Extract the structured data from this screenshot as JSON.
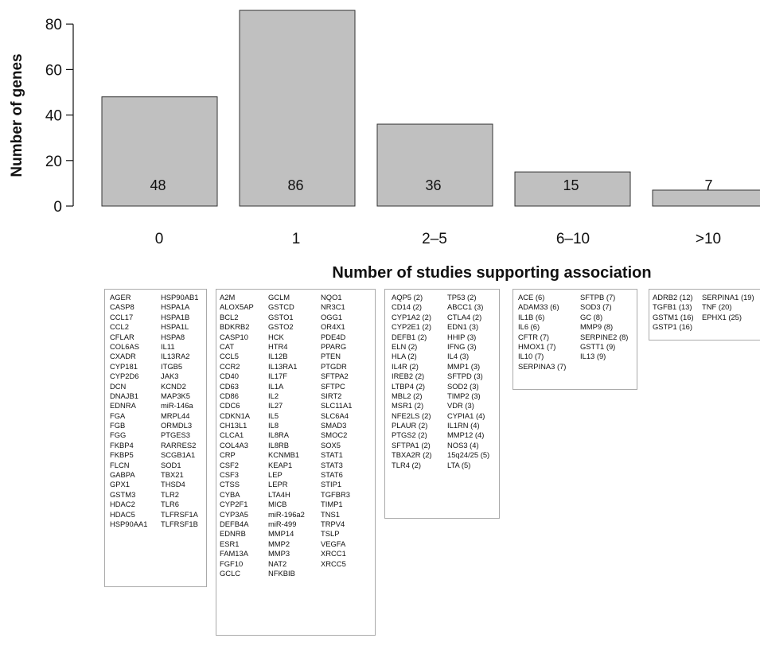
{
  "chart_data": {
    "type": "bar",
    "categories": [
      "0",
      "1",
      "2–5",
      "6–10",
      ">10"
    ],
    "values": [
      48,
      86,
      36,
      15,
      7
    ],
    "data_labels": [
      "48",
      "86",
      "36",
      "15",
      "7"
    ],
    "xlabel": "Number of studies supporting association",
    "ylabel": "Number of genes",
    "ylim": [
      0,
      86
    ],
    "yticks": [
      0,
      20,
      40,
      60,
      80
    ],
    "grid": false,
    "bar_color": "#c0c0c0",
    "bar_edge_color": "#333333"
  },
  "gene_lists": [
    {
      "category": "0",
      "columns": [
        [
          "AGER",
          "CASP8",
          "CCL17",
          "CCL2",
          "CFLAR",
          "COL6AS",
          "CXADR",
          "CYP181",
          "CYP2D6",
          "DCN",
          "DNAJB1",
          "EDNRA",
          "FGA",
          "FGB",
          "FGG",
          "FKBP4",
          "FKBP5",
          "FLCN",
          "GABPA",
          "GPX1",
          "GSTM3",
          "HDAC2",
          "HDAC5",
          "HSP90AA1"
        ],
        [
          "HSP90AB1",
          "HSPA1A",
          "HSPA1B",
          "HSPA1L",
          "HSPA8",
          "IL11",
          "IL13RA2",
          "ITGB5",
          "JAK3",
          "KCND2",
          "MAP3K5",
          "miR-146a",
          "MRPL44",
          "ORMDL3",
          "PTGES3",
          "RARRES2",
          "SCGB1A1",
          "SOD1",
          "TBX21",
          "THSD4",
          "TLR2",
          "TLR6",
          "TLFRSF1A",
          "TLFRSF1B"
        ]
      ]
    },
    {
      "category": "1",
      "columns": [
        [
          "A2M",
          "ALOX5AP",
          "BCL2",
          "BDKRB2",
          "CASP10",
          "CAT",
          "CCL5",
          "CCR2",
          "CD40",
          "CD63",
          "CD86",
          "CDC6",
          "CDKN1A",
          "CH13L1",
          "CLCA1",
          "COL4A3",
          "CRP",
          "CSF2",
          "CSF3",
          "CTSS",
          "CYBA",
          "CYP2F1",
          "CYP3A5",
          "DEFB4A",
          "EDNRB",
          "ESR1",
          "FAM13A",
          "FGF10",
          "GCLC"
        ],
        [
          "GCLM",
          "GSTCD",
          "GSTO1",
          "GSTO2",
          "HCK",
          "HTR4",
          "IL12B",
          "IL13RA1",
          "IL17F",
          "IL1A",
          "IL2",
          "IL27",
          "IL5",
          "IL8",
          "IL8RA",
          "IL8RB",
          "KCNMB1",
          "KEAP1",
          "LEP",
          "LEPR",
          "LTA4H",
          "MICB",
          "miR-196a2",
          "miR-499",
          "MMP14",
          "MMP2",
          "MMP3",
          "NAT2",
          "NFKBIB"
        ],
        [
          "NQO1",
          "NR3C1",
          "OGG1",
          "OR4X1",
          "PDE4D",
          "PPARG",
          "PTEN",
          "PTGDR",
          "SFTPA2",
          "SFTPC",
          "SIRT2",
          "SLC11A1",
          "SLC6A4",
          "SMAD3",
          "SMOC2",
          "SOX5",
          "STAT1",
          "STAT3",
          "STAT6",
          "STIP1",
          "TGFBR3",
          "TIMP1",
          "TNS1",
          "TRPV4",
          "TSLP",
          "VEGFA",
          "XRCC1",
          "XRCC5"
        ]
      ]
    },
    {
      "category": "2–5",
      "columns": [
        [
          "AQP5 (2)",
          "CD14 (2)",
          "CYP1A2 (2)",
          "CYP2E1 (2)",
          "DEFB1 (2)",
          "ELN (2)",
          "HLA (2)",
          "IL4R (2)",
          "IREB2 (2)",
          "LTBP4 (2)",
          "MBL2 (2)",
          "MSR1 (2)",
          "NFE2LS (2)",
          "PLAUR (2)",
          "PTGS2 (2)",
          "SFTPA1 (2)",
          "TBXA2R (2)",
          "TLR4 (2)"
        ],
        [
          "TP53 (2)",
          "ABCC1 (3)",
          "CTLA4 (2)",
          "EDN1 (3)",
          "HHIP (3)",
          "IFNG (3)",
          "IL4 (3)",
          "MMP1 (3)",
          "SFTPD (3)",
          "SOD2 (3)",
          "TIMP2 (3)",
          "VDR (3)",
          "CYPIA1 (4)",
          "IL1RN (4)",
          "MMP12 (4)",
          "NOS3 (4)",
          "15q24/25 (5)",
          "LTA (5)"
        ]
      ]
    },
    {
      "category": "6–10",
      "columns": [
        [
          "ACE (6)",
          "ADAM33 (6)",
          "IL1B (6)",
          "IL6 (6)",
          "CFTR (7)",
          "HMOX1 (7)",
          "IL10 (7)",
          "SERPINA3 (7)"
        ],
        [
          "SFTPB (7)",
          "SOD3 (7)",
          "GC (8)",
          "MMP9 (8)",
          "SERPINE2 (8)",
          "GSTT1 (9)",
          "IL13 (9)"
        ]
      ]
    },
    {
      "category": ">10",
      "columns": [
        [
          "ADRB2 (12)",
          "TGFB1 (13)",
          "GSTM1 (16)",
          "GSTP1 (16)"
        ],
        [
          "SERPINA1 (19)",
          "TNF (20)",
          "EPHX1 (25)"
        ]
      ]
    }
  ]
}
